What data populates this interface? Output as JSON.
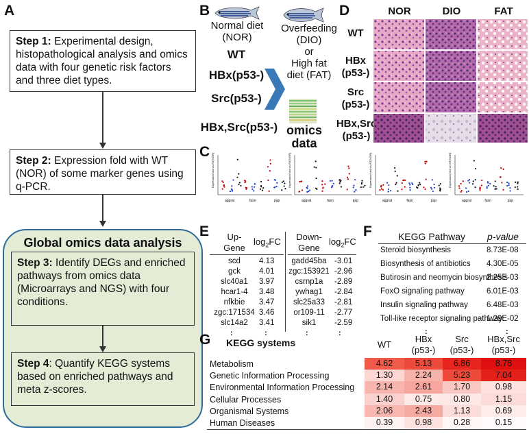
{
  "panels": {
    "A": "A",
    "B": "B",
    "C": "C",
    "D": "D",
    "E": "E",
    "F": "F",
    "G": "G"
  },
  "panelA": {
    "step1_title": "Step 1:",
    "step1_text": " Experimental design, histopathological analysis and omics data with four genetic risk factors and three diet types.",
    "step2_title": "Step 2:",
    "step2_text": " Expression fold with WT (NOR) of some marker genes using q-PCR.",
    "global_title": "Global omics data analysis",
    "step3_title": "Step 3:",
    "step3_text": " Identify DEGs and enriched pathways from omics data (Microarrays and NGS) with four conditions.",
    "step4_title": "Step 4",
    "step4_text": ": Quantify KEGG systems based on enriched pathways and meta z-scores."
  },
  "panelB": {
    "normal_diet": "Normal diet",
    "nor": "(NOR)",
    "genotypes": [
      "WT",
      "HBx(p53-)",
      "Src(p53-)",
      "HBx,Src(p53-)"
    ],
    "overfeeding": "Overfeeding",
    "dio": "(DIO)",
    "or": "or",
    "high_fat": "High fat",
    "fat": "diet (FAT)",
    "omics": "omics",
    "data": "data"
  },
  "panelD": {
    "columns": [
      "NOR",
      "DIO",
      "FAT"
    ],
    "rows": [
      "WT",
      "HBx\n(p53-)",
      "Src\n(p53-)",
      "HBx,Src\n(p53-)"
    ],
    "row_lines": [
      [
        "WT"
      ],
      [
        "HBx",
        "(p53-)"
      ],
      [
        "Src",
        "(p53-)"
      ],
      [
        "HBx,Src",
        "(p53-)"
      ]
    ]
  },
  "panelC": {
    "ylabel": "Expression fold vs WT(NOR)",
    "genes": [
      "aggrat",
      "fasn",
      "pap"
    ]
  },
  "panelE": {
    "headers": {
      "up_gene": "Up-",
      "up_gene2": "Gene",
      "log2fc": "log2FC",
      "down_gene": "Down-",
      "down_gene2": "Gene",
      "log2fc2": "log2FC"
    },
    "up": [
      [
        "scd",
        "4.13"
      ],
      [
        "gck",
        "4.01"
      ],
      [
        "slc40a1",
        "3.97"
      ],
      [
        "hcar1-4",
        "3.48"
      ],
      [
        "nfkbie",
        "3.47"
      ],
      [
        "zgc:171534",
        "3.46"
      ],
      [
        "slc14a2",
        "3.41"
      ]
    ],
    "down": [
      [
        "gadd45ba",
        "-3.01"
      ],
      [
        "zgc:153921",
        "-2.96"
      ],
      [
        "csrnp1a",
        "-2.89"
      ],
      [
        "ywhag1",
        "-2.84"
      ],
      [
        "slc25a33",
        "-2.81"
      ],
      [
        "or109-11",
        "-2.77"
      ],
      [
        "sik1",
        "-2.59"
      ]
    ],
    "dots": ":"
  },
  "panelF": {
    "header_pathway": "KEGG Pathway",
    "header_p": "p-value",
    "rows": [
      [
        "Steroid biosynthesis",
        "8.73E-08"
      ],
      [
        "Biosynthesis of antibiotics",
        "4.30E-05"
      ],
      [
        "Butirosin and neomycin biosynthesis",
        "2.25E-03"
      ],
      [
        "FoxO signaling pathway",
        "6.01E-03"
      ],
      [
        "Insulin signaling pathway",
        "6.48E-03"
      ],
      [
        "Toll-like receptor signaling pathway",
        "1.29E-02"
      ]
    ],
    "dots": ":"
  },
  "panelG": {
    "title": "KEGG systems",
    "columns": [
      "WT",
      "HBx\n(p53-)",
      "Src\n(p53-)",
      "HBx,Src\n(p53-)"
    ],
    "col_lines": [
      [
        "WT",
        ""
      ],
      [
        "HBx",
        "(p53-)"
      ],
      [
        "Src",
        "(p53-)"
      ],
      [
        "HBx,Src",
        "(p53-)"
      ]
    ],
    "rows": [
      {
        "label": "Metabolism",
        "values": [
          "4.62",
          "5.13",
          "6.86",
          "8.78"
        ],
        "colors": [
          "#ef5a4a",
          "#ee4a3c",
          "#e8241e",
          "#e01010"
        ]
      },
      {
        "label": "Genetic Information Processing",
        "values": [
          "1.30",
          "2.24",
          "5.23",
          "7.04"
        ],
        "colors": [
          "#fbd6d2",
          "#f7b2aa",
          "#ee4a3c",
          "#e4201a"
        ]
      },
      {
        "label": "Environmental Information Processing",
        "values": [
          "2.14",
          "2.61",
          "1.70",
          "0.98"
        ],
        "colors": [
          "#f7b5ad",
          "#f6a69d",
          "#f9c8c2",
          "#fde2df"
        ]
      },
      {
        "label": "Cellular Processes",
        "values": [
          "1.40",
          "0.75",
          "0.80",
          "1.15"
        ],
        "colors": [
          "#fad2cd",
          "#fdeae7",
          "#fde8e5",
          "#fcdcd8"
        ]
      },
      {
        "label": "Organismal Systems",
        "values": [
          "2.06",
          "2.43",
          "1.13",
          "0.69"
        ],
        "colors": [
          "#f8b8b1",
          "#f6aba2",
          "#fcddd9",
          "#fdecea"
        ]
      },
      {
        "label": "Human Diseases",
        "values": [
          "0.39",
          "0.98",
          "0.28",
          "0.15"
        ],
        "colors": [
          "#fef3f2",
          "#fde2df",
          "#fff6f5",
          "#fffafa"
        ]
      }
    ]
  }
}
